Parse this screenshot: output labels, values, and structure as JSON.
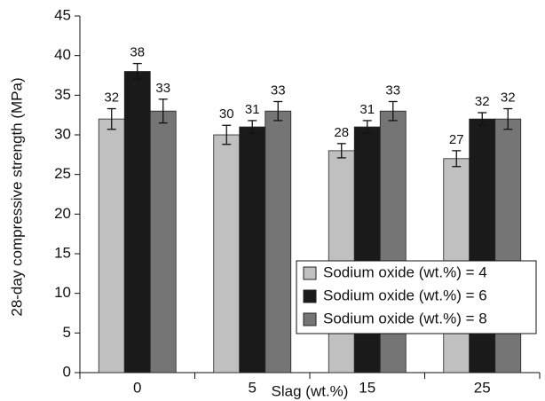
{
  "chart_data": {
    "type": "bar",
    "x_label": "Slag (wt.%)",
    "y_label": "28-day compressive strength (MPa)",
    "categories": [
      "0",
      "5",
      "15",
      "25"
    ],
    "series": [
      {
        "name": "Sodium oxide (wt.%) = 4",
        "color": "#c0c0c0",
        "values": [
          32,
          30,
          28,
          27
        ],
        "errors": [
          1.3,
          1.2,
          0.9,
          1.0
        ]
      },
      {
        "name": "Sodium oxide (wt.%) = 6",
        "color": "#1a1a1a",
        "values": [
          38,
          31,
          31,
          32
        ],
        "errors": [
          1.0,
          0.8,
          0.8,
          0.8
        ]
      },
      {
        "name": "Sodium oxide (wt.%) = 8",
        "color": "#757575",
        "values": [
          33,
          33,
          33,
          32
        ],
        "errors": [
          1.5,
          1.2,
          1.2,
          1.3
        ]
      }
    ],
    "ylim": [
      0,
      45
    ],
    "yticks": [
      0,
      5,
      10,
      15,
      20,
      25,
      30,
      35,
      40,
      45
    ],
    "legend": "lower right"
  }
}
